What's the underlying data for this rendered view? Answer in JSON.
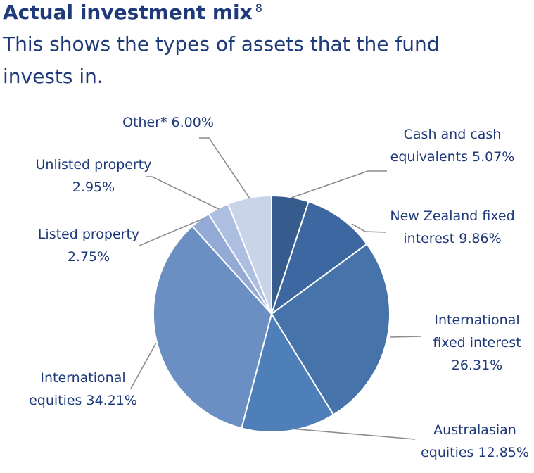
{
  "header": {
    "title": "Actual investment mix",
    "footnote": "8",
    "subtitle": "This shows the types of assets that the fund invests in."
  },
  "chart_data": {
    "type": "pie",
    "unit": "%",
    "slices": [
      {
        "label_lines": [
          "Cash and cash",
          "equivalents 5.07%"
        ],
        "value": 5.07,
        "color": "#365c8d"
      },
      {
        "label_lines": [
          "New Zealand fixed",
          "interest 9.86%"
        ],
        "value": 9.86,
        "color": "#3d67a0"
      },
      {
        "label_lines": [
          "International",
          "fixed interest",
          "26.31%"
        ],
        "value": 26.31,
        "color": "#4673aa"
      },
      {
        "label_lines": [
          "Australasian",
          "equities 12.85%"
        ],
        "value": 12.85,
        "color": "#4f7fb8"
      },
      {
        "label_lines": [
          "International",
          "equities 34.21%"
        ],
        "value": 34.21,
        "color": "#6b8fc3"
      },
      {
        "label_lines": [
          "Listed property",
          "2.75%"
        ],
        "value": 2.75,
        "color": "#93aad4"
      },
      {
        "label_lines": [
          "Unlisted property",
          "2.95%"
        ],
        "value": 2.95,
        "color": "#adbfe0"
      },
      {
        "label_lines": [
          "Other* 6.00%"
        ],
        "value": 6.0,
        "color": "#c9d4e9"
      }
    ]
  }
}
